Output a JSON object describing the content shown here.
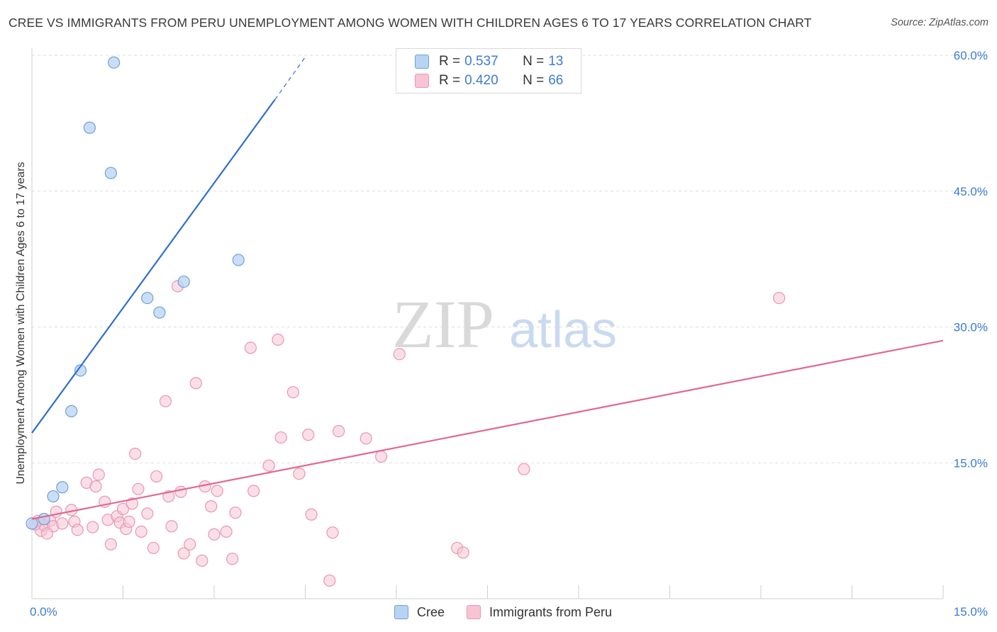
{
  "header": {
    "title": "CREE VS IMMIGRANTS FROM PERU UNEMPLOYMENT AMONG WOMEN WITH CHILDREN AGES 6 TO 17 YEARS CORRELATION CHART",
    "source": "Source: ZipAtlas.com"
  },
  "watermark": {
    "zip": "ZIP",
    "atlas": "atlas"
  },
  "legend": {
    "cree": {
      "r_label": "R =",
      "r_value": "0.537",
      "n_label": "N =",
      "n_value": "13"
    },
    "peru": {
      "r_label": "R =",
      "r_value": "0.420",
      "n_label": "N =",
      "n_value": "66"
    }
  },
  "bottom_legend": {
    "cree": "Cree",
    "peru": "Immigrants from Peru"
  },
  "colors": {
    "cree_fill": "#b8d4f4",
    "cree_stroke": "#6f9fd8",
    "cree_line": "#2f6fd0",
    "peru_fill": "#f8c4d4",
    "peru_stroke": "#e896b2",
    "peru_line": "#e0698f",
    "tick": "#3d7bd4",
    "grid": "#dddddd"
  },
  "chart_data": {
    "type": "scatter",
    "title": "CREE VS IMMIGRANTS FROM PERU UNEMPLOYMENT AMONG WOMEN WITH CHILDREN AGES 6 TO 17 YEARS CORRELATION CHART",
    "xlabel": "",
    "ylabel": "Unemployment Among Women with Children Ages 6 to 17 years",
    "xlim": [
      0,
      15
    ],
    "ylim": [
      0,
      60
    ],
    "x_tick_labels": [
      "0.0%",
      "15.0%"
    ],
    "y_ticks": [
      15,
      30,
      45,
      60
    ],
    "y_tick_labels": [
      "15.0%",
      "30.0%",
      "45.0%",
      "60.0%"
    ],
    "grid": true,
    "legend_position": "top-center",
    "series": [
      {
        "name": "Cree",
        "r": 0.537,
        "n": 13,
        "points": [
          [
            0.0,
            8.3
          ],
          [
            0.2,
            8.8
          ],
          [
            0.35,
            11.3
          ],
          [
            0.5,
            12.3
          ],
          [
            0.65,
            20.7
          ],
          [
            0.8,
            25.2
          ],
          [
            0.95,
            52.0
          ],
          [
            1.3,
            47.0
          ],
          [
            1.35,
            59.2
          ],
          [
            1.9,
            33.2
          ],
          [
            2.1,
            31.6
          ],
          [
            2.5,
            35.0
          ],
          [
            3.4,
            37.4
          ]
        ],
        "trend": {
          "x": [
            0.0,
            4.0
          ],
          "y": [
            18.3,
            55.1
          ],
          "dashed_to": [
            4.5,
            59.8
          ]
        }
      },
      {
        "name": "Immigrants from Peru",
        "r": 0.42,
        "n": 66,
        "points": [
          [
            0.1,
            8.6
          ],
          [
            0.15,
            7.5
          ],
          [
            0.2,
            8.1
          ],
          [
            0.3,
            8.6
          ],
          [
            0.35,
            8.0
          ],
          [
            0.4,
            9.6
          ],
          [
            0.5,
            8.3
          ],
          [
            0.65,
            9.8
          ],
          [
            0.7,
            8.5
          ],
          [
            0.75,
            7.6
          ],
          [
            0.9,
            12.8
          ],
          [
            1.0,
            7.9
          ],
          [
            1.05,
            12.4
          ],
          [
            1.1,
            13.7
          ],
          [
            1.2,
            10.7
          ],
          [
            1.25,
            8.7
          ],
          [
            1.3,
            6.0
          ],
          [
            1.4,
            9.1
          ],
          [
            1.45,
            8.4
          ],
          [
            1.5,
            9.9
          ],
          [
            1.55,
            7.7
          ],
          [
            1.6,
            8.5
          ],
          [
            1.65,
            10.5
          ],
          [
            1.7,
            16.0
          ],
          [
            1.75,
            12.1
          ],
          [
            1.8,
            7.4
          ],
          [
            1.9,
            9.4
          ],
          [
            2.0,
            5.6
          ],
          [
            2.05,
            13.5
          ],
          [
            2.2,
            21.8
          ],
          [
            2.25,
            11.3
          ],
          [
            2.3,
            8.0
          ],
          [
            2.4,
            34.5
          ],
          [
            2.45,
            11.8
          ],
          [
            2.5,
            5.0
          ],
          [
            2.6,
            6.0
          ],
          [
            2.7,
            23.8
          ],
          [
            2.8,
            4.2
          ],
          [
            2.85,
            12.4
          ],
          [
            2.95,
            10.2
          ],
          [
            3.0,
            7.1
          ],
          [
            3.05,
            11.9
          ],
          [
            3.2,
            7.4
          ],
          [
            3.3,
            4.4
          ],
          [
            3.35,
            9.5
          ],
          [
            3.6,
            27.7
          ],
          [
            3.65,
            11.9
          ],
          [
            3.9,
            14.7
          ],
          [
            4.05,
            28.6
          ],
          [
            4.1,
            17.8
          ],
          [
            4.3,
            22.8
          ],
          [
            4.4,
            13.8
          ],
          [
            4.55,
            18.1
          ],
          [
            4.6,
            9.3
          ],
          [
            4.9,
            2.0
          ],
          [
            4.95,
            7.3
          ],
          [
            5.05,
            18.5
          ],
          [
            5.5,
            17.7
          ],
          [
            5.75,
            15.7
          ],
          [
            6.05,
            27.0
          ],
          [
            7.0,
            5.6
          ],
          [
            7.1,
            5.1
          ],
          [
            8.1,
            14.3
          ],
          [
            12.3,
            33.2
          ],
          [
            0.05,
            8.2
          ],
          [
            0.25,
            7.2
          ]
        ],
        "trend": {
          "x": [
            0.0,
            15.0
          ],
          "y": [
            8.8,
            28.5
          ]
        }
      }
    ]
  }
}
